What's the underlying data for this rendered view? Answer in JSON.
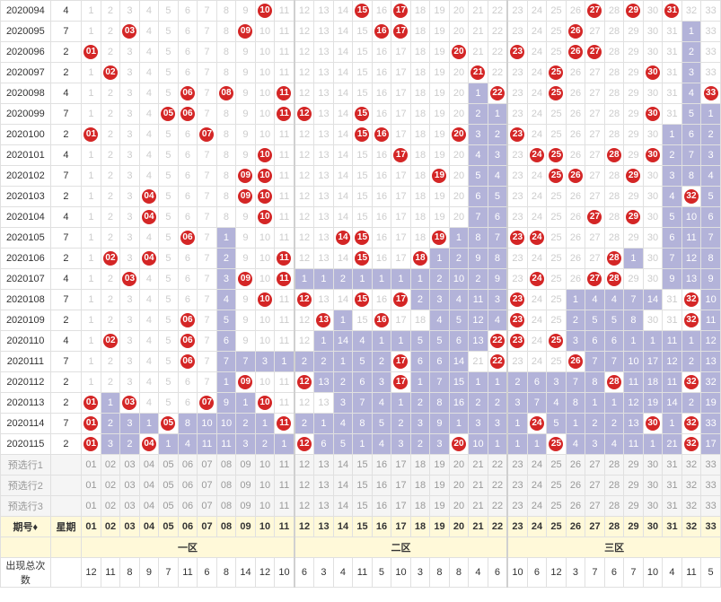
{
  "columns": {
    "issue": "期号",
    "week": "星期",
    "zone1": "一区",
    "zone2": "二区",
    "zone3": "三区"
  },
  "footer": {
    "preselect": [
      "预选行1",
      "预选行2",
      "预选行3"
    ],
    "issue_arrow": "期号♦",
    "count": "出现总次数"
  },
  "numbers": 33,
  "zones": [
    [
      1,
      11
    ],
    [
      12,
      22
    ],
    [
      23,
      33
    ]
  ],
  "counts": [
    12,
    11,
    8,
    9,
    7,
    11,
    6,
    8,
    14,
    12,
    10,
    6,
    3,
    4,
    11,
    5,
    10,
    3,
    8,
    8,
    4,
    6,
    10,
    6,
    12,
    3,
    7,
    6,
    7,
    10,
    4,
    11,
    5
  ],
  "rows": [
    {
      "i": "2020094",
      "w": "4",
      "b": [
        10,
        15,
        17,
        27,
        29,
        31
      ],
      "t": {}
    },
    {
      "i": "2020095",
      "w": "7",
      "b": [
        3,
        9,
        16,
        17,
        26
      ],
      "t": {
        "32": 1
      }
    },
    {
      "i": "2020096",
      "w": "2",
      "b": [
        1,
        20,
        23,
        26,
        27
      ],
      "t": {
        "32": 2
      }
    },
    {
      "i": "2020097",
      "w": "2",
      "b": [
        2,
        21,
        25,
        30
      ],
      "t": {
        "32": 3
      }
    },
    {
      "i": "2020098",
      "w": "4",
      "b": [
        6,
        8,
        11,
        22,
        25,
        33
      ],
      "t": {
        "21": 1,
        "32": 4
      }
    },
    {
      "i": "2020099",
      "w": "7",
      "b": [
        5,
        6,
        11,
        12,
        15,
        30
      ],
      "t": {
        "21": 2,
        "22": 1,
        "32": 5,
        "33": 1
      }
    },
    {
      "i": "2020100",
      "w": "2",
      "b": [
        1,
        7,
        15,
        16,
        20,
        23
      ],
      "t": {
        "21": 3,
        "22": 2,
        "31": 1,
        "32": 6,
        "33": 2
      }
    },
    {
      "i": "2020101",
      "w": "4",
      "b": [
        10,
        17,
        24,
        25,
        28,
        30
      ],
      "t": {
        "21": 4,
        "22": 3,
        "31": 2,
        "32": 7,
        "33": 3
      }
    },
    {
      "i": "2020102",
      "w": "7",
      "b": [
        9,
        10,
        19,
        25,
        26,
        29
      ],
      "t": {
        "21": 5,
        "22": 4,
        "31": 3,
        "32": 8,
        "33": 4
      }
    },
    {
      "i": "2020103",
      "w": "2",
      "b": [
        4,
        9,
        10,
        32
      ],
      "t": {
        "21": 6,
        "22": 5,
        "31": 4,
        "33": 5
      }
    },
    {
      "i": "2020104",
      "w": "4",
      "b": [
        4,
        10,
        27,
        29
      ],
      "t": {
        "21": 7,
        "22": 6,
        "31": 5,
        "32": 10,
        "33": 6
      }
    },
    {
      "i": "2020105",
      "w": "7",
      "b": [
        6,
        14,
        15,
        19,
        23,
        24
      ],
      "t": {
        "8": 1,
        "20": 1,
        "21": 8,
        "22": 7,
        "31": 6,
        "32": 11,
        "33": 7
      }
    },
    {
      "i": "2020106",
      "w": "2",
      "b": [
        2,
        4,
        11,
        15,
        18,
        28
      ],
      "t": {
        "8": 2,
        "19": 1,
        "20": 2,
        "21": 9,
        "22": 8,
        "29": 1,
        "31": 7,
        "32": 12,
        "33": 8
      }
    },
    {
      "i": "2020107",
      "w": "4",
      "b": [
        3,
        9,
        11,
        24,
        27,
        28
      ],
      "t": {
        "8": 3,
        "12": 1,
        "13": 1,
        "14": 2,
        "15": 1,
        "16": 1,
        "17": 1,
        "18": 1,
        "19": 2,
        "20": 10,
        "21": 2,
        "22": 9,
        "31": 9,
        "32": 13,
        "33": 9
      }
    },
    {
      "i": "2020108",
      "w": "7",
      "b": [
        10,
        12,
        15,
        17,
        23,
        32
      ],
      "t": {
        "8": 4,
        "18": 2,
        "19": 3,
        "20": 4,
        "21": 11,
        "22": 3,
        "26": 1,
        "27": 4,
        "28": 4,
        "29": 7,
        "30": 14,
        "33": 10
      }
    },
    {
      "i": "2020109",
      "w": "2",
      "b": [
        6,
        13,
        16,
        23,
        32
      ],
      "t": {
        "8": 5,
        "14": 1,
        "19": 4,
        "20": 5,
        "21": 12,
        "22": 4,
        "26": 2,
        "27": 5,
        "28": 5,
        "29": 8,
        "33": 11
      }
    },
    {
      "i": "2020110",
      "w": "4",
      "b": [
        2,
        6,
        22,
        23,
        25
      ],
      "t": {
        "8": 6,
        "13": 1,
        "14": 14,
        "15": 4,
        "16": 1,
        "17": 1,
        "18": 5,
        "19": 5,
        "20": 6,
        "21": 13,
        "26": 3,
        "27": 6,
        "28": 6,
        "29": 1,
        "30": 1,
        "31": 11,
        "32": 1,
        "33": 12
      }
    },
    {
      "i": "2020111",
      "w": "7",
      "b": [
        6,
        17,
        22,
        26
      ],
      "t": {
        "8": 7,
        "9": 7,
        "10": 3,
        "11": 1,
        "12": 2,
        "13": 2,
        "14": 1,
        "15": 5,
        "16": 2,
        "18": 6,
        "19": 6,
        "20": 14,
        "27": 7,
        "28": 7,
        "29": 10,
        "30": 17,
        "31": 12,
        "32": 2,
        "33": 13
      }
    },
    {
      "i": "2020112",
      "w": "2",
      "b": [
        9,
        12,
        17,
        28,
        32
      ],
      "t": {
        "8": 1,
        "13": 13,
        "14": 2,
        "15": 6,
        "16": 3,
        "18": 1,
        "19": 7,
        "20": 15,
        "21": 1,
        "22": 1,
        "23": 2,
        "24": 6,
        "25": 3,
        "26": 7,
        "27": 8,
        "29": 11,
        "30": 18,
        "31": 11,
        "33": 32
      }
    },
    {
      "i": "2020113",
      "w": "2",
      "b": [
        1,
        3,
        7,
        10
      ],
      "t": {
        "2": 1,
        "8": 9,
        "9": 1,
        "14": 3,
        "15": 7,
        "16": 4,
        "17": 1,
        "18": 2,
        "19": 8,
        "20": 16,
        "21": 2,
        "22": 2,
        "23": 3,
        "24": 7,
        "25": 4,
        "26": 8,
        "27": 1,
        "28": 1,
        "29": 12,
        "30": 19,
        "31": 14,
        "32": 2,
        "33": 19
      }
    },
    {
      "i": "2020114",
      "w": "7",
      "b": [
        1,
        5,
        11,
        24,
        30,
        32
      ],
      "t": {
        "2": 2,
        "3": 3,
        "4": 1,
        "6": 8,
        "7": 10,
        "8": 10,
        "9": 2,
        "10": 1,
        "12": 2,
        "13": 1,
        "14": 4,
        "15": 8,
        "16": 5,
        "17": 2,
        "18": 3,
        "19": 9,
        "20": 1,
        "21": 3,
        "22": 3,
        "23": 1,
        "25": 5,
        "26": 1,
        "27": 2,
        "28": 2,
        "29": 13,
        "31": 1,
        "33": 33
      }
    },
    {
      "i": "2020115",
      "w": "2",
      "b": [
        1,
        4,
        12,
        20,
        25,
        32
      ],
      "t": {
        "2": 3,
        "3": 2,
        "5": 1,
        "6": 4,
        "7": 11,
        "8": 11,
        "9": 3,
        "10": 2,
        "11": 1,
        "13": 6,
        "14": 5,
        "15": 1,
        "16": 4,
        "17": 3,
        "18": 2,
        "19": 3,
        "21": 10,
        "22": 1,
        "23": 1,
        "24": 1,
        "26": 4,
        "27": 3,
        "28": 4,
        "29": 11,
        "30": 1,
        "31": 21,
        "33": 17
      }
    }
  ],
  "colors": {
    "red": "#d42626",
    "gray": "#cccccc",
    "trend": "#b3b3d9",
    "blue": "#eaf2fb",
    "border": "#e0e0e0",
    "footer_bg": "#fff9d9"
  }
}
